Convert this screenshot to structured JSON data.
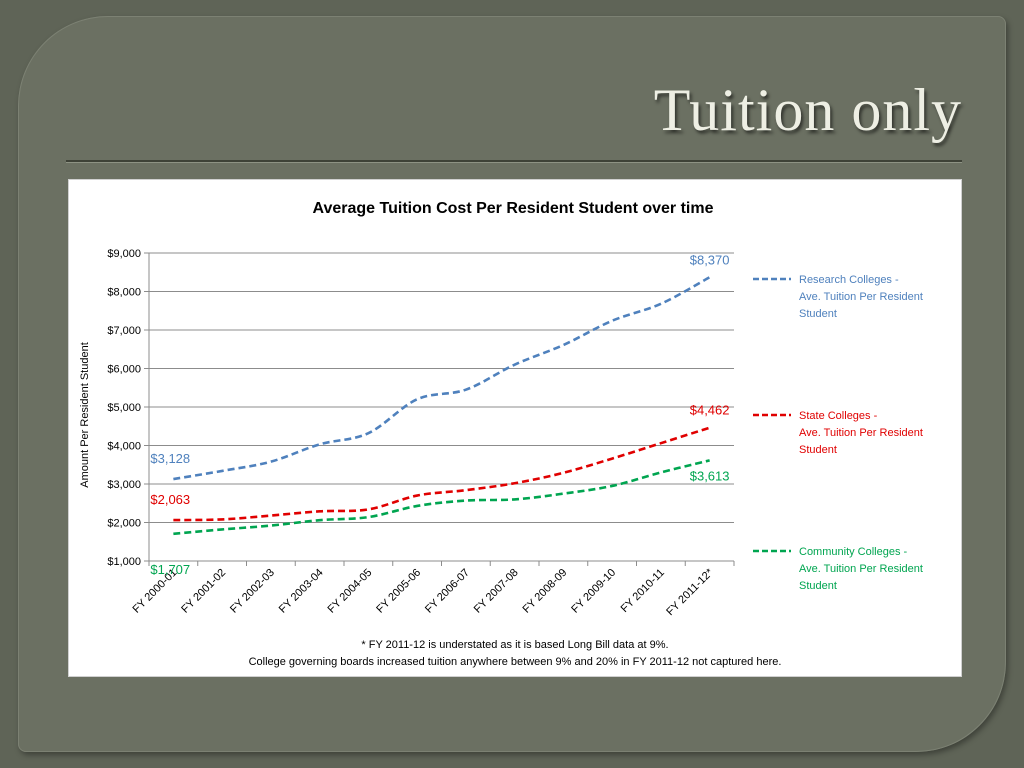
{
  "slide": {
    "title": "Tuition only"
  },
  "footnotes": [
    "* FY 2011-12 is understated as it is based Long Bill data at 9%.",
    "College governing boards increased tuition anywhere between 9% and 20% in FY 2011-12 not captured here."
  ],
  "chart_data": {
    "type": "line",
    "title": "Average Tuition Cost Per Resident Student over time",
    "ylabel": "Amount Per Resident Student",
    "xlabel": "",
    "ylim": [
      1000,
      9000
    ],
    "yticks": [
      1000,
      2000,
      3000,
      4000,
      5000,
      6000,
      7000,
      8000,
      9000
    ],
    "ytick_labels": [
      "$1,000",
      "$2,000",
      "$3,000",
      "$4,000",
      "$5,000",
      "$6,000",
      "$7,000",
      "$8,000",
      "$9,000"
    ],
    "grid": true,
    "legend_position": "right",
    "categories": [
      "FY 2000-01",
      "FY 2001-02",
      "FY 2002-03",
      "FY 2003-04",
      "FY 2004-05",
      "FY 2005-06",
      "FY 2006-07",
      "FY 2007-08",
      "FY 2008-09",
      "FY 2009-10",
      "FY 2010-11",
      "FY 2011-12*"
    ],
    "series": [
      {
        "name": "Research  Colleges -\nAve. Tuition Per Resident\nStudent",
        "color": "#4f81bd",
        "values": [
          3128,
          3340,
          3580,
          4030,
          4320,
          5200,
          5450,
          6100,
          6610,
          7240,
          7680,
          8370
        ],
        "start_label": "$3,128",
        "end_label": "$8,370"
      },
      {
        "name": "State Colleges -\nAve. Tuition Per Resident\nStudent",
        "color": "#e00000",
        "values": [
          2063,
          2080,
          2180,
          2290,
          2340,
          2700,
          2840,
          3020,
          3290,
          3660,
          4060,
          4462
        ],
        "start_label": "$2,063",
        "end_label": "$4,462"
      },
      {
        "name": "Community Colleges -\nAve. Tuition Per Resident\nStudent",
        "color": "#00a550",
        "values": [
          1707,
          1820,
          1920,
          2060,
          2140,
          2430,
          2570,
          2600,
          2750,
          2950,
          3300,
          3613
        ],
        "start_label": "$1,707",
        "end_label": "$3,613"
      }
    ]
  }
}
